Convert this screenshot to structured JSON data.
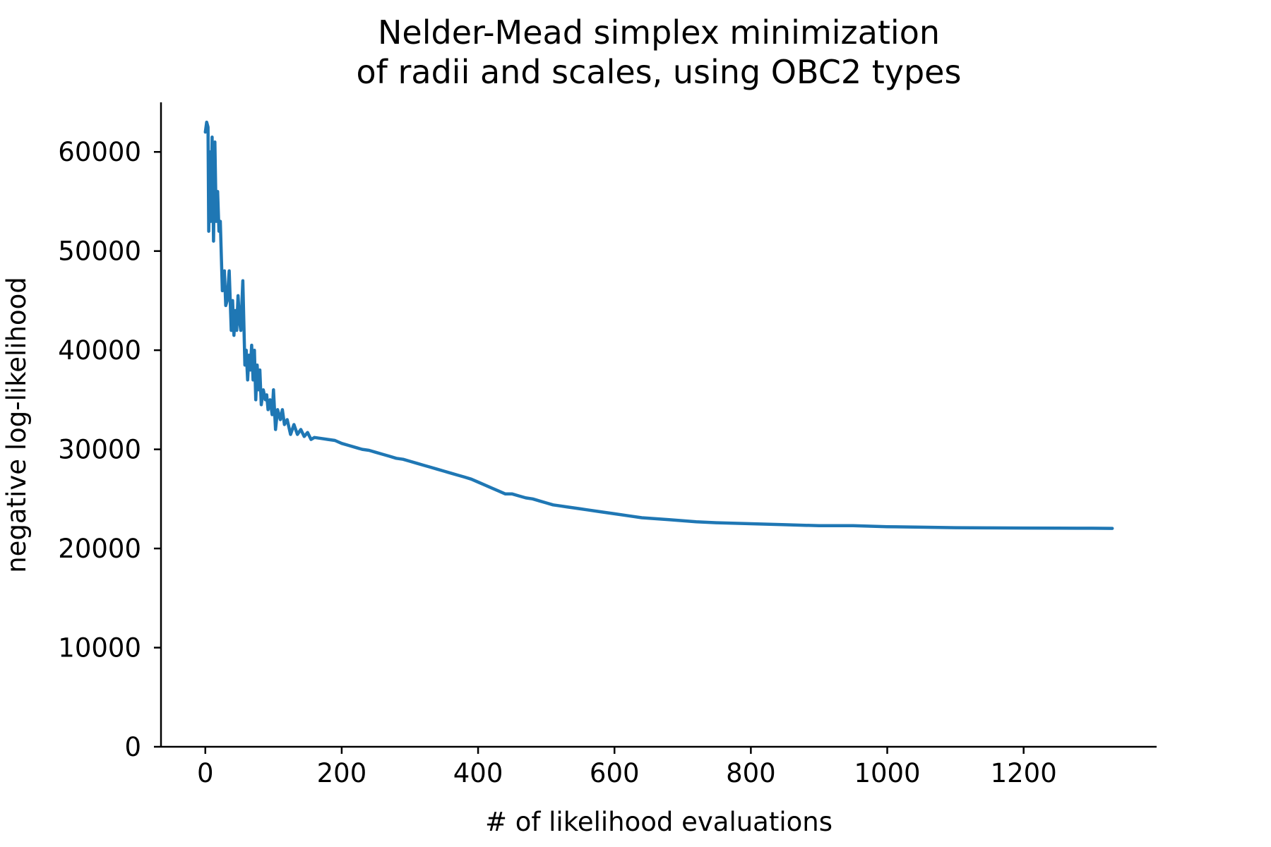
{
  "chart_data": {
    "type": "line",
    "title_lines": [
      "Nelder-Mead simplex minimization",
      "of radii and scales, using OBC2 types"
    ],
    "xlabel": "# of likelihood evaluations",
    "ylabel": "negative log-likelihood",
    "xlim": [
      -65,
      1395
    ],
    "ylim": [
      0,
      65000
    ],
    "xticks": [
      0,
      200,
      400,
      600,
      800,
      1000,
      1200
    ],
    "yticks": [
      0,
      10000,
      20000,
      30000,
      40000,
      50000,
      60000
    ],
    "xtick_labels": [
      "0",
      "200",
      "400",
      "600",
      "800",
      "1000",
      "1200"
    ],
    "ytick_labels": [
      "0",
      "10000",
      "20000",
      "30000",
      "40000",
      "50000",
      "60000"
    ],
    "grid": false,
    "spines": [
      "left",
      "bottom"
    ],
    "series": [
      {
        "color": "#1f77b4",
        "x": [
          0,
          2,
          4,
          5,
          7,
          8,
          10,
          12,
          14,
          16,
          18,
          20,
          22,
          25,
          28,
          30,
          32,
          35,
          38,
          40,
          42,
          44,
          46,
          48,
          50,
          52,
          55,
          58,
          60,
          62,
          64,
          66,
          68,
          70,
          72,
          74,
          76,
          78,
          80,
          82,
          85,
          88,
          90,
          92,
          95,
          98,
          100,
          103,
          106,
          110,
          113,
          116,
          120,
          125,
          130,
          135,
          140,
          145,
          150,
          155,
          160,
          170,
          180,
          190,
          200,
          210,
          220,
          230,
          240,
          250,
          260,
          270,
          280,
          290,
          300,
          310,
          320,
          330,
          340,
          350,
          360,
          370,
          380,
          390,
          400,
          410,
          420,
          430,
          440,
          450,
          460,
          470,
          480,
          490,
          500,
          510,
          520,
          530,
          540,
          550,
          560,
          580,
          600,
          620,
          640,
          660,
          680,
          700,
          720,
          750,
          800,
          850,
          900,
          950,
          1000,
          1050,
          1100,
          1150,
          1200,
          1250,
          1300,
          1330
        ],
        "y": [
          62000,
          63000,
          62500,
          52000,
          60000,
          53000,
          61500,
          51000,
          61000,
          53000,
          56000,
          52000,
          53000,
          46000,
          48000,
          44500,
          45000,
          48000,
          42000,
          45000,
          41500,
          44000,
          42000,
          45500,
          43000,
          42000,
          47000,
          38500,
          40000,
          37000,
          39500,
          38000,
          40500,
          37000,
          40000,
          35000,
          38500,
          36000,
          38000,
          34500,
          36000,
          35000,
          35500,
          34000,
          35000,
          33500,
          36000,
          32000,
          34000,
          33000,
          34000,
          32500,
          33000,
          31500,
          32500,
          31500,
          32000,
          31300,
          31700,
          31000,
          31200,
          31100,
          31000,
          30900,
          30600,
          30400,
          30200,
          30000,
          29900,
          29700,
          29500,
          29300,
          29100,
          29000,
          28800,
          28600,
          28400,
          28200,
          28000,
          27800,
          27600,
          27400,
          27200,
          27000,
          26700,
          26400,
          26100,
          25800,
          25500,
          25500,
          25300,
          25100,
          25000,
          24800,
          24600,
          24400,
          24300,
          24200,
          24100,
          24000,
          23900,
          23700,
          23500,
          23300,
          23100,
          23000,
          22900,
          22800,
          22700,
          22600,
          22500,
          22400,
          22300,
          22300,
          22200,
          22150,
          22100,
          22080,
          22060,
          22050,
          22040,
          22030
        ]
      }
    ]
  }
}
